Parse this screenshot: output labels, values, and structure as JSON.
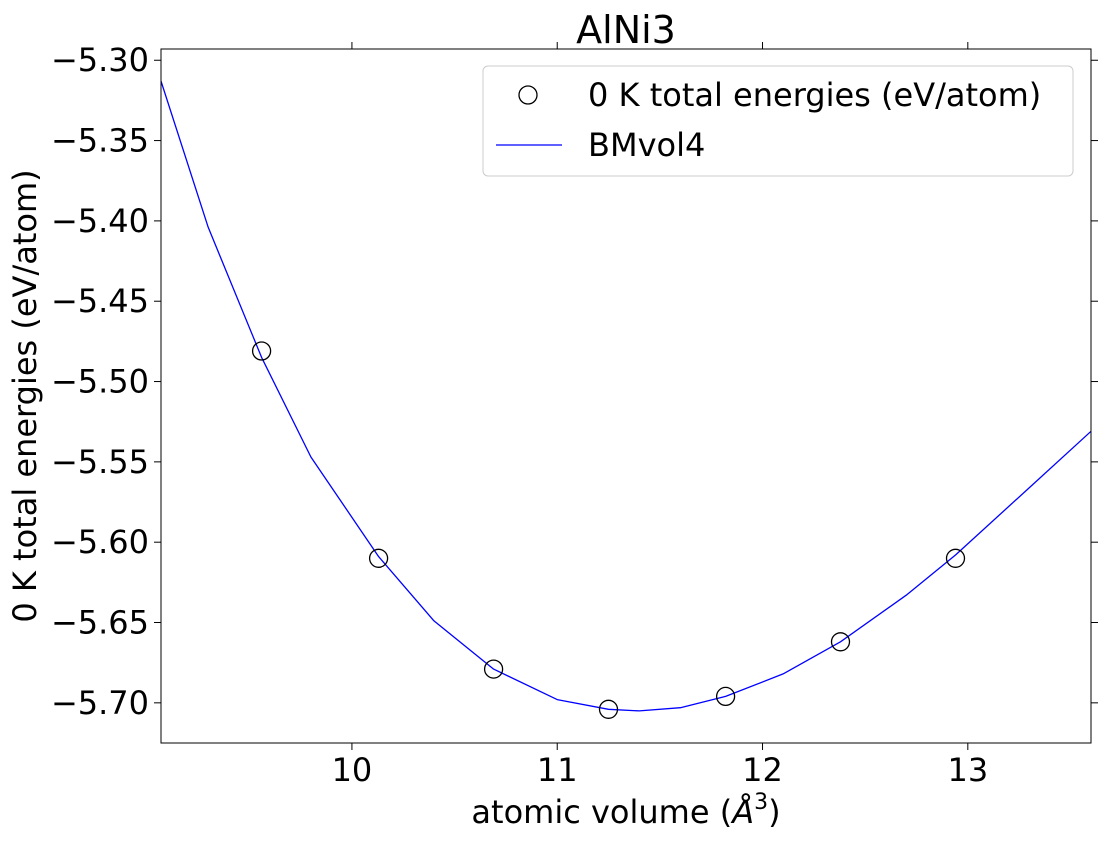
{
  "chart_data": {
    "type": "scatter",
    "title": "AlNi3",
    "xlabel": "atomic volume (Å³)",
    "xlabel_main": "atomic volume (",
    "xlabel_unit": "Å",
    "xlabel_exp": "3",
    "xlabel_close": ")",
    "ylabel": "0 K total energies (eV/atom)",
    "xlim": [
      9.07,
      13.6
    ],
    "ylim": [
      -5.725,
      -5.293
    ],
    "xticks": [
      10,
      11,
      12,
      13
    ],
    "xtick_labels": [
      "10",
      "11",
      "12",
      "13"
    ],
    "yticks": [
      -5.3,
      -5.35,
      -5.4,
      -5.45,
      -5.5,
      -5.55,
      -5.6,
      -5.65,
      -5.7
    ],
    "ytick_labels": [
      "−5.30",
      "−5.35",
      "−5.40",
      "−5.45",
      "−5.50",
      "−5.55",
      "−5.60",
      "−5.65",
      "−5.70"
    ],
    "grid": false,
    "legend_position": "top-right",
    "series": [
      {
        "name": "0 K total energies (eV/atom)",
        "kind": "scatter",
        "marker": "open-circle",
        "color": "#000000",
        "x": [
          9.56,
          10.13,
          10.69,
          11.25,
          11.82,
          12.38,
          12.94
        ],
        "y": [
          -5.481,
          -5.61,
          -5.679,
          -5.704,
          -5.696,
          -5.662,
          -5.61
        ]
      },
      {
        "name": "BMvol4",
        "kind": "line",
        "color": "#0000ff",
        "x": [
          9.07,
          9.3,
          9.56,
          9.8,
          10.13,
          10.4,
          10.69,
          11.0,
          11.25,
          11.4,
          11.6,
          11.82,
          12.1,
          12.38,
          12.7,
          12.94,
          13.3,
          13.6
        ],
        "y": [
          -5.313,
          -5.404,
          -5.485,
          -5.547,
          -5.609,
          -5.649,
          -5.679,
          -5.698,
          -5.704,
          -5.705,
          -5.703,
          -5.696,
          -5.682,
          -5.662,
          -5.633,
          -5.608,
          -5.566,
          -5.531
        ]
      }
    ]
  }
}
